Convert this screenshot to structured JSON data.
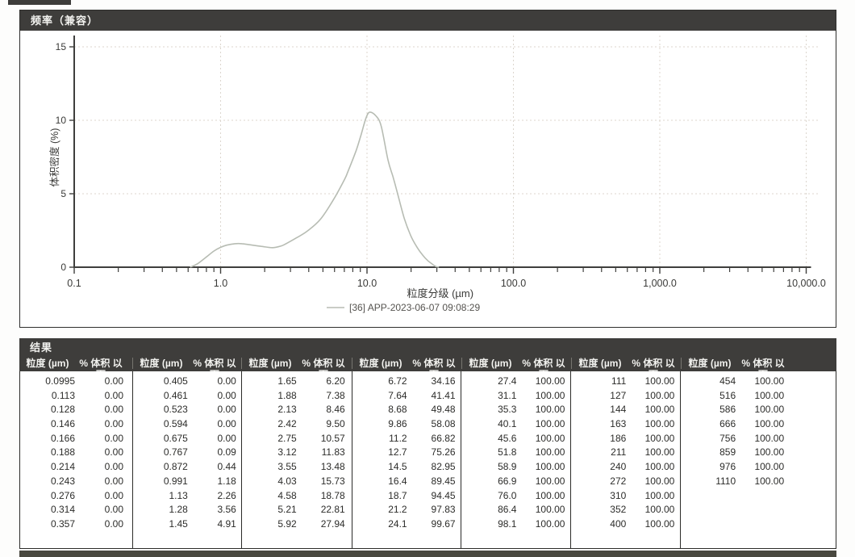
{
  "chart_data": {
    "type": "line",
    "title": "频率（兼容）",
    "xlabel": "粒度分级 (µm)",
    "ylabel": "体积密度 (%)",
    "xscale": "log",
    "xlim": [
      0.1,
      10000
    ],
    "ylim": [
      0,
      15
    ],
    "xticks": [
      0.1,
      1,
      10,
      100,
      1000,
      10000
    ],
    "xtick_labels": [
      "0.1",
      "1.0",
      "10.0",
      "100.0",
      "1,000.0",
      "10,000.0"
    ],
    "yticks": [
      0,
      5,
      10,
      15
    ],
    "ytick_labels": [
      "0",
      "5",
      "10",
      "15"
    ],
    "xgrid": [
      1,
      10,
      100,
      1000,
      10000
    ],
    "ygrid": [
      5,
      10,
      15
    ],
    "grid_style": "dotted",
    "legend": {
      "position": "bottom",
      "label": "[36] APP-2023-06-07 09:08:29"
    },
    "series": [
      {
        "name": "[36] APP-2023-06-07 09:08:29",
        "color": "#b7bcb3",
        "points": [
          [
            0.62,
            0
          ],
          [
            0.7,
            0.25
          ],
          [
            0.8,
            0.7
          ],
          [
            0.9,
            1.1
          ],
          [
            1.0,
            1.35
          ],
          [
            1.1,
            1.5
          ],
          [
            1.25,
            1.6
          ],
          [
            1.4,
            1.6
          ],
          [
            1.6,
            1.52
          ],
          [
            1.9,
            1.42
          ],
          [
            2.26,
            1.33
          ],
          [
            2.6,
            1.45
          ],
          [
            2.8,
            1.6
          ],
          [
            3.3,
            2.0
          ],
          [
            3.9,
            2.45
          ],
          [
            4.8,
            3.25
          ],
          [
            5.9,
            4.6
          ],
          [
            7.0,
            5.95
          ],
          [
            7.4,
            6.5
          ],
          [
            8.4,
            7.9
          ],
          [
            9.1,
            9.0
          ],
          [
            9.8,
            10.1
          ],
          [
            10.4,
            10.55
          ],
          [
            11.5,
            10.3
          ],
          [
            12.5,
            9.6
          ],
          [
            13.9,
            7.3
          ],
          [
            15.0,
            6.2
          ],
          [
            16.0,
            5.2
          ],
          [
            18.0,
            3.3
          ],
          [
            20.0,
            2.1
          ],
          [
            22.0,
            1.35
          ],
          [
            24.1,
            0.8
          ],
          [
            26.0,
            0.45
          ],
          [
            28.0,
            0.2
          ],
          [
            29.5,
            0.05
          ],
          [
            31.0,
            0
          ]
        ]
      }
    ]
  },
  "results": {
    "title": "结果",
    "col_size": "粒度 (µm)",
    "col_pct": "% 体积 以下",
    "groups": [
      [
        [
          "0.0995",
          "0.00"
        ],
        [
          "0.113",
          "0.00"
        ],
        [
          "0.128",
          "0.00"
        ],
        [
          "0.146",
          "0.00"
        ],
        [
          "0.166",
          "0.00"
        ],
        [
          "0.188",
          "0.00"
        ],
        [
          "0.214",
          "0.00"
        ],
        [
          "0.243",
          "0.00"
        ],
        [
          "0.276",
          "0.00"
        ],
        [
          "0.314",
          "0.00"
        ],
        [
          "0.357",
          "0.00"
        ]
      ],
      [
        [
          "0.405",
          "0.00"
        ],
        [
          "0.461",
          "0.00"
        ],
        [
          "0.523",
          "0.00"
        ],
        [
          "0.594",
          "0.00"
        ],
        [
          "0.675",
          "0.00"
        ],
        [
          "0.767",
          "0.09"
        ],
        [
          "0.872",
          "0.44"
        ],
        [
          "0.991",
          "1.18"
        ],
        [
          "1.13",
          "2.26"
        ],
        [
          "1.28",
          "3.56"
        ],
        [
          "1.45",
          "4.91"
        ]
      ],
      [
        [
          "1.65",
          "6.20"
        ],
        [
          "1.88",
          "7.38"
        ],
        [
          "2.13",
          "8.46"
        ],
        [
          "2.42",
          "9.50"
        ],
        [
          "2.75",
          "10.57"
        ],
        [
          "3.12",
          "11.83"
        ],
        [
          "3.55",
          "13.48"
        ],
        [
          "4.03",
          "15.73"
        ],
        [
          "4.58",
          "18.78"
        ],
        [
          "5.21",
          "22.81"
        ],
        [
          "5.92",
          "27.94"
        ]
      ],
      [
        [
          "6.72",
          "34.16"
        ],
        [
          "7.64",
          "41.41"
        ],
        [
          "8.68",
          "49.48"
        ],
        [
          "9.86",
          "58.08"
        ],
        [
          "11.2",
          "66.82"
        ],
        [
          "12.7",
          "75.26"
        ],
        [
          "14.5",
          "82.95"
        ],
        [
          "16.4",
          "89.45"
        ],
        [
          "18.7",
          "94.45"
        ],
        [
          "21.2",
          "97.83"
        ],
        [
          "24.1",
          "99.67"
        ]
      ],
      [
        [
          "27.4",
          "100.00"
        ],
        [
          "31.1",
          "100.00"
        ],
        [
          "35.3",
          "100.00"
        ],
        [
          "40.1",
          "100.00"
        ],
        [
          "45.6",
          "100.00"
        ],
        [
          "51.8",
          "100.00"
        ],
        [
          "58.9",
          "100.00"
        ],
        [
          "66.9",
          "100.00"
        ],
        [
          "76.0",
          "100.00"
        ],
        [
          "86.4",
          "100.00"
        ],
        [
          "98.1",
          "100.00"
        ]
      ],
      [
        [
          "111",
          "100.00"
        ],
        [
          "127",
          "100.00"
        ],
        [
          "144",
          "100.00"
        ],
        [
          "163",
          "100.00"
        ],
        [
          "186",
          "100.00"
        ],
        [
          "211",
          "100.00"
        ],
        [
          "240",
          "100.00"
        ],
        [
          "272",
          "100.00"
        ],
        [
          "310",
          "100.00"
        ],
        [
          "352",
          "100.00"
        ],
        [
          "400",
          "100.00"
        ]
      ],
      [
        [
          "454",
          "100.00"
        ],
        [
          "516",
          "100.00"
        ],
        [
          "586",
          "100.00"
        ],
        [
          "666",
          "100.00"
        ],
        [
          "756",
          "100.00"
        ],
        [
          "859",
          "100.00"
        ],
        [
          "976",
          "100.00"
        ],
        [
          "1110",
          "100.00"
        ]
      ]
    ]
  }
}
